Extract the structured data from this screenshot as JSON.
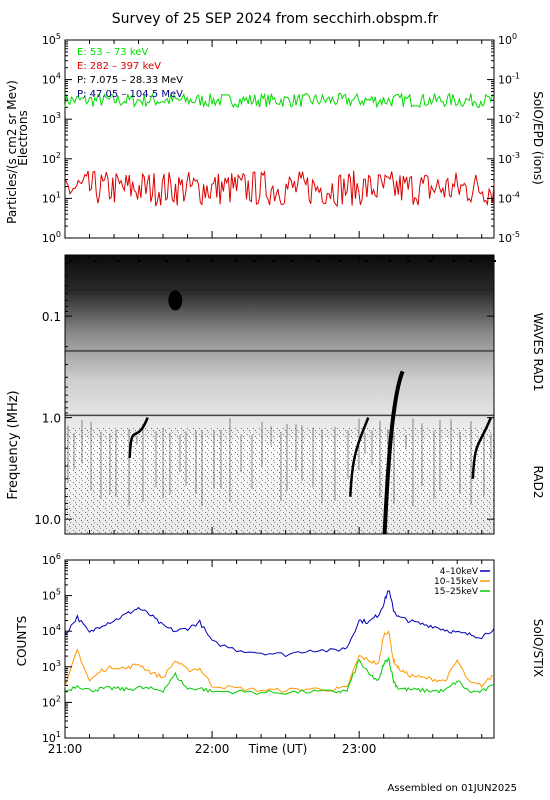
{
  "title": "Survey of 25 SEP 2024 from secchirh.obspm.fr",
  "footer": "Assembled on 01JUN2025",
  "chart_data": [
    {
      "panel": "particles",
      "type": "line",
      "ylabel": "Particles/(s cm2 sr Mev)",
      "ylabel2": "Electrons",
      "right_label": "SolO/EPD (ions)",
      "y_scale": "log",
      "ylim": [
        1,
        100000
      ],
      "y_ticks": [
        "10^0",
        "10^1",
        "10^2",
        "10^3",
        "10^4",
        "10^5"
      ],
      "y2_ticks": [
        "10^-5",
        "10^-4",
        "10^-3",
        "10^-2",
        "10^-1",
        "10^0"
      ],
      "xlim": [
        "21:00",
        "23:55"
      ],
      "legend": [
        {
          "label": "E: 53 – 73 keV",
          "color": "#00dd00"
        },
        {
          "label": "E: 282 – 397 keV",
          "color": "#dd0000"
        },
        {
          "label": "P: 7.075 – 28.33 MeV",
          "color": "#000000"
        },
        {
          "label": "P: 47.05 – 104.5 MeV",
          "color": "#000080"
        }
      ],
      "series": [
        {
          "name": "E: 53 – 73 keV",
          "color": "#00dd00",
          "level": 3000,
          "noise_decades": 0.35
        },
        {
          "name": "E: 282 – 397 keV",
          "color": "#dd0000",
          "level": 18,
          "noise_decades": 0.9
        }
      ]
    },
    {
      "panel": "radio",
      "type": "heatmap",
      "ylabel": "Frequency (MHz)",
      "right_label_top": "WAVES RAD1",
      "right_label_bottom": "RAD2",
      "y_scale": "log",
      "y_inverted": true,
      "ylim": [
        0.025,
        14
      ],
      "y_ticks": [
        "0.1",
        "1.0",
        "10.0"
      ],
      "xlim": [
        "21:00",
        "23:55"
      ],
      "bursts": [
        {
          "time": "21:45",
          "freq_start": 0.06,
          "freq_end": 0.08,
          "kind": "blob"
        },
        {
          "time": "23:12",
          "freq_start": 0.35,
          "freq_end": 14,
          "kind": "type-III"
        },
        {
          "time": "22:58",
          "freq_start": 1.0,
          "freq_end": 6,
          "kind": "type-III"
        },
        {
          "time": "23:48",
          "freq_start": 1.0,
          "freq_end": 4,
          "kind": "type-III"
        },
        {
          "time": "21:28",
          "freq_start": 1.0,
          "freq_end": 2.5,
          "kind": "type-III"
        }
      ]
    },
    {
      "panel": "xray",
      "type": "line",
      "ylabel": "COUNTS",
      "right_label": "SolO/STIX",
      "xlabel": "Time (UT)",
      "y_scale": "log",
      "ylim": [
        10,
        1000000
      ],
      "y_ticks": [
        "10^1",
        "10^2",
        "10^3",
        "10^4",
        "10^5",
        "10^6"
      ],
      "xlim": [
        "21:00",
        "23:55"
      ],
      "x_ticks": [
        "21:00",
        "22:00",
        "23:00"
      ],
      "legend": [
        {
          "label": "4–10keV",
          "color": "#0000bb"
        },
        {
          "label": "10–15keV",
          "color": "#ff9900"
        },
        {
          "label": "15–25keV",
          "color": "#00cc00"
        }
      ],
      "series": [
        {
          "name": "4–10keV",
          "color": "#0000bb",
          "x": [
            "21:00",
            "21:05",
            "21:10",
            "21:15",
            "21:20",
            "21:25",
            "21:30",
            "21:35",
            "21:40",
            "21:45",
            "21:50",
            "21:55",
            "22:00",
            "22:10",
            "22:20",
            "22:30",
            "22:40",
            "22:50",
            "22:55",
            "23:00",
            "23:04",
            "23:08",
            "23:10",
            "23:12",
            "23:14",
            "23:16",
            "23:20",
            "23:25",
            "23:30",
            "23:35",
            "23:40",
            "23:45",
            "23:50",
            "23:55"
          ],
          "y": [
            8000,
            25000,
            9000,
            15000,
            20000,
            30000,
            45000,
            28000,
            14000,
            10000,
            12000,
            18000,
            5000,
            3000,
            2500,
            2200,
            3000,
            2800,
            3500,
            20000,
            18000,
            30000,
            60000,
            150000,
            40000,
            25000,
            20000,
            16000,
            14000,
            11000,
            9000,
            8000,
            7000,
            12000
          ]
        },
        {
          "name": "10–15keV",
          "color": "#ff9900",
          "x": [
            "21:00",
            "21:05",
            "21:10",
            "21:15",
            "21:20",
            "21:25",
            "21:30",
            "21:35",
            "21:40",
            "21:45",
            "21:50",
            "21:55",
            "22:00",
            "22:10",
            "22:20",
            "22:30",
            "22:40",
            "22:50",
            "22:55",
            "23:00",
            "23:04",
            "23:08",
            "23:10",
            "23:12",
            "23:14",
            "23:16",
            "23:20",
            "23:25",
            "23:30",
            "23:35",
            "23:40",
            "23:45",
            "23:50",
            "23:55"
          ],
          "y": [
            250,
            3000,
            400,
            800,
            1000,
            900,
            1200,
            700,
            500,
            1500,
            800,
            900,
            300,
            250,
            220,
            220,
            240,
            230,
            260,
            2000,
            1500,
            1200,
            8000,
            10000,
            1500,
            900,
            600,
            500,
            450,
            400,
            1500,
            350,
            300,
            600
          ]
        },
        {
          "name": "15–25keV",
          "color": "#00cc00",
          "x": [
            "21:00",
            "21:05",
            "21:10",
            "21:15",
            "21:20",
            "21:25",
            "21:30",
            "21:35",
            "21:40",
            "21:45",
            "21:50",
            "21:55",
            "22:00",
            "22:10",
            "22:20",
            "22:30",
            "22:40",
            "22:50",
            "22:55",
            "23:00",
            "23:04",
            "23:08",
            "23:10",
            "23:12",
            "23:14",
            "23:16",
            "23:20",
            "23:25",
            "23:30",
            "23:35",
            "23:40",
            "23:45",
            "23:50",
            "23:55"
          ],
          "y": [
            200,
            300,
            220,
            240,
            250,
            230,
            260,
            240,
            220,
            600,
            240,
            250,
            200,
            200,
            190,
            190,
            200,
            200,
            210,
            1500,
            600,
            400,
            1200,
            1800,
            400,
            250,
            230,
            220,
            210,
            210,
            400,
            200,
            200,
            300
          ]
        }
      ]
    }
  ]
}
